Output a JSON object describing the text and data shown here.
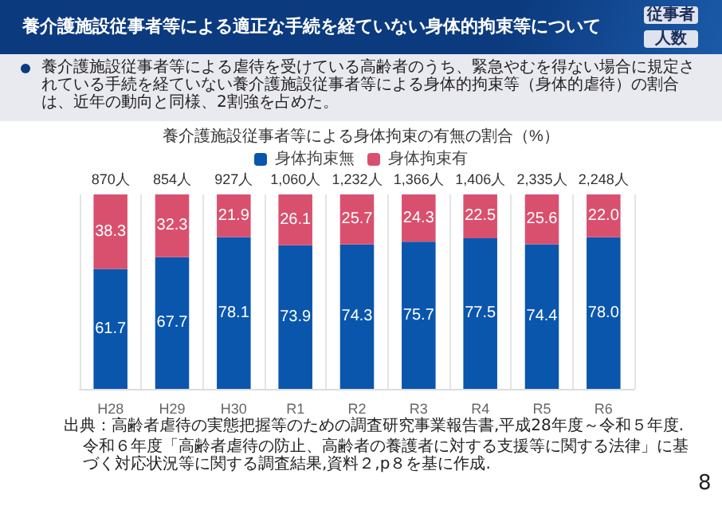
{
  "chart_data": {
    "type": "bar",
    "stacked": true,
    "legend": "top",
    "grid": "x",
    "title": "養介護施設従事者等による身体拘束の有無の割合（%）",
    "annotations": [
      "養介護施設従事者等による適正な手続を経ていない身体的拘束等について",
      "従事者",
      "人数",
      "養介護施設従事者等による虐待を受けている高齢者のうち、緊急やむを得ない場合に規定されている手続を経ていない養介護施設従事者等による身体的拘束等（身体的虐待）の割合は、近年の動向と同様、2割強を占めた。",
      "出典：高齢者虐待の実態把握等のための調査研究事業報告書,平成28年度～令和５年度.",
      "令和６年度「高齢者虐待の防止、高齢者の養護者に対する支援等に関する法律」に基づく対応状況等に関する調査結果,資料２,p８を基に作成.",
      "8",
      {
        "text": "870人",
        "x": "H28",
        "y": 100
      },
      {
        "text": "854人",
        "x": "H29",
        "y": 100
      },
      {
        "text": "927人",
        "x": "H30",
        "y": 100
      },
      {
        "text": "1,060人",
        "x": "R1",
        "y": 100
      },
      {
        "text": "1,232人",
        "x": "R2",
        "y": 100
      },
      {
        "text": "1,366人",
        "x": "R3",
        "y": 100
      },
      {
        "text": "1,406人",
        "x": "R4",
        "y": 100
      },
      {
        "text": "2,335人",
        "x": "R5",
        "y": 100
      },
      {
        "text": "2,248人",
        "x": "R6",
        "y": 100
      }
    ],
    "categories": [
      "H28",
      "H29",
      "H30",
      "R1",
      "R2",
      "R3",
      "R4",
      "R5",
      "R6"
    ],
    "series": [
      {
        "name": "身体拘束無",
        "color": "#0a56ad",
        "values": [
          61.7,
          67.7,
          78.1,
          73.9,
          74.3,
          75.7,
          77.5,
          74.4,
          78.0
        ],
        "value_labels": [
          "61.7",
          "67.7",
          "78.1",
          "73.9",
          "74.3",
          "75.7",
          "77.5",
          "74.4",
          "78.0"
        ]
      },
      {
        "name": "身体拘束有",
        "color": "#d9506e",
        "values": [
          38.3,
          32.3,
          21.9,
          26.1,
          25.7,
          24.3,
          22.5,
          25.6,
          22.0
        ],
        "value_labels": [
          "38.3",
          "32.3",
          "21.9",
          "26.1",
          "25.7",
          "24.3",
          "22.5",
          "25.6",
          "22.0"
        ]
      }
    ],
    "ylim": [
      0,
      100
    ]
  }
}
